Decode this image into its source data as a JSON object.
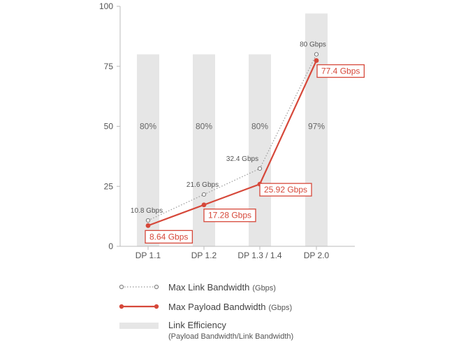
{
  "chart_data": {
    "type": "bar",
    "categories": [
      "DP 1.1",
      "DP 1.2",
      "DP 1.3 / 1.4",
      "DP 2.0"
    ],
    "highlight_category": "DP 2.0",
    "ylim": [
      0,
      100
    ],
    "yticks": [
      0,
      25,
      50,
      75,
      100
    ],
    "grid": false,
    "legend_position": "bottom-left",
    "colors": {
      "accent": "#d6483a",
      "bar": "#e6e6e6",
      "link_line": "#999999",
      "axis": "#bbbbbb"
    },
    "series": [
      {
        "name": "Link Efficiency",
        "name_sub": "(Payload Bandwidth/Link Bandwidth)",
        "kind": "bar",
        "values": [
          80,
          80,
          80,
          97
        ],
        "labels": [
          "80%",
          "80%",
          "80%",
          "97%"
        ]
      },
      {
        "name": "Max Link Bandwidth",
        "unit": "(Gbps)",
        "kind": "line-dotted",
        "values": [
          10.8,
          21.6,
          32.4,
          80
        ],
        "labels": [
          "10.8 Gbps",
          "21.6 Gbps",
          "32.4 Gbps",
          "80 Gbps"
        ]
      },
      {
        "name": "Max Payload Bandwidth",
        "unit": "(Gbps)",
        "kind": "line",
        "values": [
          8.64,
          17.28,
          25.92,
          77.4
        ],
        "labels": [
          "8.64 Gbps",
          "17.28 Gbps",
          "25.92 Gbps",
          "77.4 Gbps"
        ]
      }
    ]
  }
}
